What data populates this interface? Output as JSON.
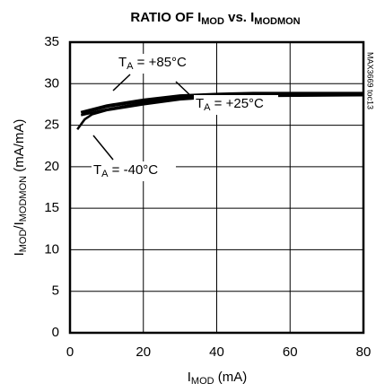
{
  "chart_data": {
    "type": "line",
    "title": [
      "RATIO OF I",
      "MOD",
      " vs. I",
      "MODMON"
    ],
    "xlabel": [
      "I",
      "MOD",
      " (mA)"
    ],
    "ylabel": [
      "I",
      "MOD",
      "/I",
      "MODMON",
      " (mA/mA)"
    ],
    "side_note": "MAX3669 toc13",
    "xlim": [
      0,
      80
    ],
    "xticks": [
      0,
      20,
      40,
      60,
      80
    ],
    "ylim": [
      0,
      35
    ],
    "yticks": [
      0,
      5,
      10,
      15,
      20,
      25,
      30,
      35
    ],
    "grid": true,
    "series": [
      {
        "name": [
          "T",
          "A",
          " = +85°C"
        ],
        "color": "#000000",
        "x": [
          3,
          10,
          20,
          30,
          40,
          50,
          60,
          80
        ],
        "values": [
          26.5,
          27.3,
          28.0,
          28.5,
          28.7,
          28.8,
          28.8,
          28.8
        ]
      },
      {
        "name": [
          "T",
          "A",
          " = +25°C"
        ],
        "color": "#000000",
        "x": [
          3,
          10,
          20,
          30,
          40,
          50,
          60,
          80
        ],
        "values": [
          26.2,
          26.9,
          27.7,
          28.3,
          28.5,
          28.6,
          28.6,
          28.6
        ]
      },
      {
        "name": [
          "T",
          "A",
          " = -40°C"
        ],
        "color": "#000000",
        "x": [
          2,
          4,
          6,
          10,
          20,
          30,
          40,
          50,
          80
        ],
        "values": [
          24.5,
          25.7,
          26.3,
          26.8,
          27.5,
          28.1,
          28.4,
          28.5,
          28.6
        ]
      }
    ]
  }
}
